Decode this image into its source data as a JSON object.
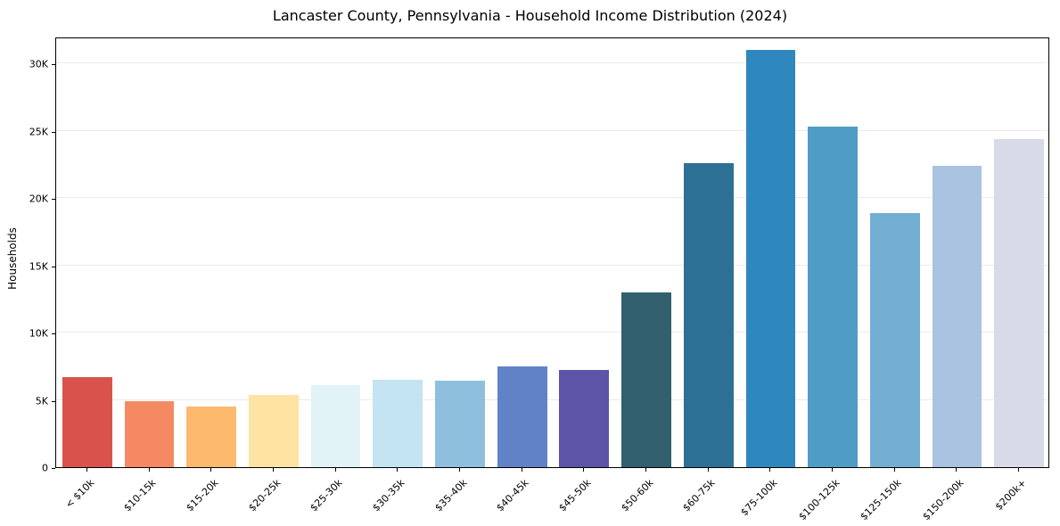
{
  "chart_data": {
    "type": "bar",
    "title": "Lancaster County, Pennsylvania - Household Income Distribution (2024)",
    "xlabel": "",
    "ylabel": "Households",
    "ylim": [
      0,
      32000
    ],
    "grid": "horizontal",
    "legend": "none",
    "categories": [
      "< $10k",
      "$10-15k",
      "$15-20k",
      "$20-25k",
      "$25-30k",
      "$30-35k",
      "$35-40k",
      "$40-45k",
      "$45-50k",
      "$50-60k",
      "$60-75k",
      "$75-100k",
      "$100-125k",
      "$125-150k",
      "$150-200k",
      "$200k+"
    ],
    "values": [
      6700,
      4900,
      4500,
      5400,
      6100,
      6500,
      6400,
      7500,
      7200,
      13000,
      22600,
      31000,
      25300,
      18900,
      22400,
      24400
    ],
    "bar_colors": [
      "#d9534c",
      "#f58a62",
      "#fdb96e",
      "#fee3a2",
      "#e2f3f8",
      "#c3e4f0",
      "#8ebfdd",
      "#6282c8",
      "#5c54a7",
      "#32606f",
      "#2d7095",
      "#2f88bd",
      "#4f9dc7",
      "#73aed3",
      "#a9c3e0",
      "#d9dae8"
    ],
    "yticks": {
      "values": [
        0,
        5000,
        10000,
        15000,
        20000,
        25000,
        30000
      ],
      "labels": [
        "0",
        "5K",
        "10K",
        "15K",
        "20K",
        "25K",
        "30K"
      ]
    }
  }
}
